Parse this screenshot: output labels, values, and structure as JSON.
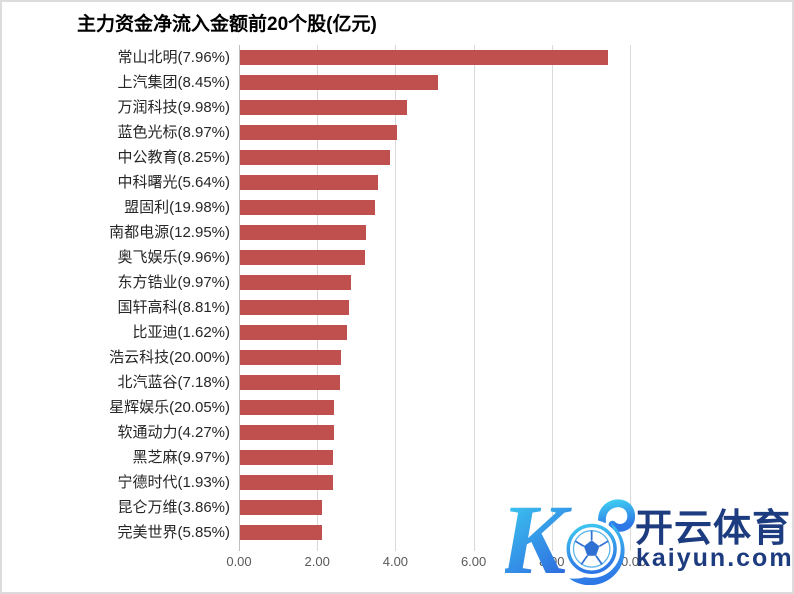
{
  "title": "主力资金净流入金额前20个股(亿元)",
  "chart_data": {
    "type": "bar",
    "orientation": "horizontal",
    "title": "主力资金净流入金额前20个股(亿元)",
    "categories": [
      "常山北明(7.96%)",
      "上汽集团(8.45%)",
      "万润科技(9.98%)",
      "蓝色光标(8.97%)",
      "中公教育(8.25%)",
      "中科曙光(5.64%)",
      "盟固利(19.98%)",
      "南都电源(12.95%)",
      "奥飞娱乐(9.96%)",
      "东方锆业(9.97%)",
      "国轩高科(8.81%)",
      "比亚迪(1.62%)",
      "浩云科技(20.00%)",
      "北汽蓝谷(7.18%)",
      "星辉娱乐(20.05%)",
      "软通动力(4.27%)",
      "黑芝麻(9.97%)",
      "宁德时代(1.93%)",
      "昆仑万维(3.86%)",
      "完美世界(5.85%)"
    ],
    "values": [
      9.41,
      5.06,
      4.27,
      4.01,
      3.84,
      3.53,
      3.45,
      3.22,
      3.2,
      2.84,
      2.79,
      2.74,
      2.58,
      2.56,
      2.4,
      2.4,
      2.38,
      2.38,
      2.1,
      2.1
    ],
    "xlabel": "",
    "ylabel": "",
    "xlim": [
      0,
      10
    ],
    "x_tick_labels": [
      "0.00",
      "2.00",
      "4.00",
      "6.00",
      "8.00",
      "10.00"
    ],
    "grid": true,
    "legend_position": "none",
    "bar_color": "#C0504D",
    "gridline_color": "#D9D9D9",
    "tick_label_color": "#595959"
  },
  "watermark": {
    "logo": "kaiyun-k-soccer-ball-logo",
    "brand_cn": "开云体育",
    "brand_url": "kaiyun.com",
    "brand_color": "#1D3C80",
    "logo_gradient_start": "#3FD9F2",
    "logo_gradient_end": "#2E6BE0"
  }
}
